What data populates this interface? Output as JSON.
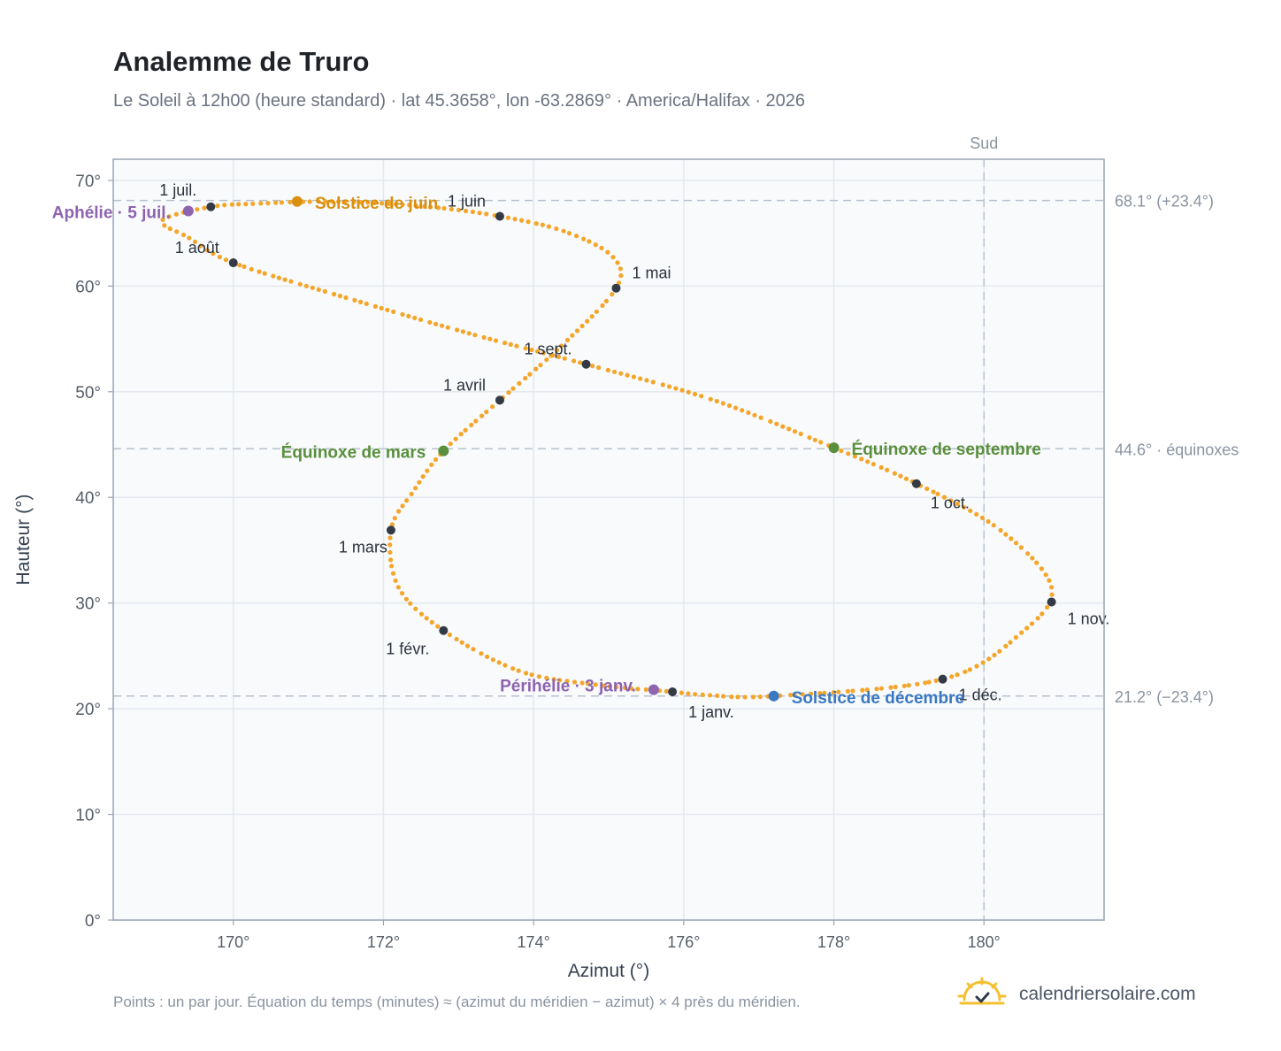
{
  "title": "Analemme de Truro",
  "subtitle": "Le Soleil à 12h00 (heure standard) · lat 45.3658°, lon -63.2869° · America/Halifax · 2026",
  "footnote": "Points : un par jour. Équation du temps (minutes) ≈ (azimut du méridien − azimut) × 4 près du méridien.",
  "brand": {
    "name": "calendriersolaire.com",
    "icon": "sun-logo-icon"
  },
  "colors": {
    "curve": "#f4a62a",
    "month_marker": "#333a45",
    "equinox": "#5a8f3c",
    "june_solstice": "#d98f10",
    "december_solstice": "#3a78c2",
    "apsis": "#8e63b0",
    "plot_background": "#f8fafc",
    "grid": "#e5e9ef",
    "reference_line": "#b9c2cd"
  },
  "chart_data": {
    "type": "scatter",
    "xlabel": "Azimut (°)",
    "ylabel": "Hauteur (°)",
    "xlim": [
      168.4,
      181.6
    ],
    "ylim": [
      0,
      72
    ],
    "x_ticks": [
      {
        "value": 170,
        "label": "170°"
      },
      {
        "value": 172,
        "label": "172°"
      },
      {
        "value": 174,
        "label": "174°"
      },
      {
        "value": 176,
        "label": "176°"
      },
      {
        "value": 178,
        "label": "178°"
      },
      {
        "value": 180,
        "label": "180°"
      }
    ],
    "y_ticks": [
      {
        "value": 0,
        "label": "0°"
      },
      {
        "value": 10,
        "label": "10°"
      },
      {
        "value": 20,
        "label": "20°"
      },
      {
        "value": 30,
        "label": "30°"
      },
      {
        "value": 40,
        "label": "40°"
      },
      {
        "value": 50,
        "label": "50°"
      },
      {
        "value": 60,
        "label": "60°"
      },
      {
        "value": 70,
        "label": "70°"
      }
    ],
    "grid": true,
    "south_line": {
      "x": 180,
      "label": "Sud"
    },
    "reference_lines": [
      {
        "y": 68.1,
        "label": "68.1° (+23.4°)"
      },
      {
        "y": 44.6,
        "label": "44.6° · équinoxes"
      },
      {
        "y": 21.2,
        "label": "21.2° (−23.4°)"
      }
    ],
    "curve_points": [
      [
        175.85,
        21.6
      ],
      [
        174.8,
        22.3
      ],
      [
        173.8,
        23.6
      ],
      [
        172.8,
        27.4
      ],
      [
        172.2,
        31.5
      ],
      [
        172.1,
        36.9
      ],
      [
        172.4,
        40.6
      ],
      [
        172.8,
        44.4
      ],
      [
        173.55,
        49.2
      ],
      [
        174.35,
        54.2
      ],
      [
        175.1,
        59.8
      ],
      [
        175.05,
        62.8
      ],
      [
        174.4,
        65.2
      ],
      [
        173.55,
        66.6
      ],
      [
        172.6,
        67.5
      ],
      [
        171.4,
        68.0
      ],
      [
        170.3,
        67.8
      ],
      [
        169.7,
        67.5
      ],
      [
        169.05,
        66.2
      ],
      [
        169.4,
        64.6
      ],
      [
        170.0,
        62.2
      ],
      [
        171.5,
        58.9
      ],
      [
        173.1,
        55.6
      ],
      [
        174.7,
        52.6
      ],
      [
        176.4,
        49.2
      ],
      [
        178.0,
        44.7
      ],
      [
        179.1,
        41.3
      ],
      [
        180.2,
        37.0
      ],
      [
        180.9,
        31.5
      ],
      [
        180.5,
        27.2
      ],
      [
        179.45,
        22.8
      ],
      [
        177.2,
        21.2
      ],
      [
        176.3,
        21.3
      ],
      [
        175.85,
        21.6
      ]
    ],
    "month_points": [
      {
        "label": "1 janv.",
        "x": 175.85,
        "y": 21.6
      },
      {
        "label": "1 févr.",
        "x": 172.8,
        "y": 27.4
      },
      {
        "label": "1 mars",
        "x": 172.1,
        "y": 36.9
      },
      {
        "label": "1 avril",
        "x": 173.55,
        "y": 49.2
      },
      {
        "label": "1 mai",
        "x": 175.1,
        "y": 59.8
      },
      {
        "label": "1 juin",
        "x": 173.55,
        "y": 66.6
      },
      {
        "label": "1 juil.",
        "x": 169.7,
        "y": 67.5
      },
      {
        "label": "1 août",
        "x": 170.0,
        "y": 62.2
      },
      {
        "label": "1 sept.",
        "x": 174.7,
        "y": 52.6
      },
      {
        "label": "1 oct.",
        "x": 179.1,
        "y": 41.3
      },
      {
        "label": "1 nov.",
        "x": 180.9,
        "y": 30.1
      },
      {
        "label": "1 déc.",
        "x": 179.45,
        "y": 22.8
      }
    ],
    "events": [
      {
        "label": "Équinoxe de mars",
        "x": 172.8,
        "y": 44.4,
        "color_key": "equinox"
      },
      {
        "label": "Solstice de juin",
        "x": 170.85,
        "y": 68.0,
        "color_key": "june_solstice"
      },
      {
        "label": "Équinoxe de septembre",
        "x": 178.0,
        "y": 44.7,
        "color_key": "equinox"
      },
      {
        "label": "Solstice de décembre",
        "x": 177.2,
        "y": 21.2,
        "color_key": "december_solstice"
      },
      {
        "label": "Aphélie · 5 juil.",
        "x": 169.4,
        "y": 67.1,
        "color_key": "apsis"
      },
      {
        "label": "Périhélie · 3 janv.",
        "x": 175.6,
        "y": 21.8,
        "color_key": "apsis"
      }
    ]
  }
}
